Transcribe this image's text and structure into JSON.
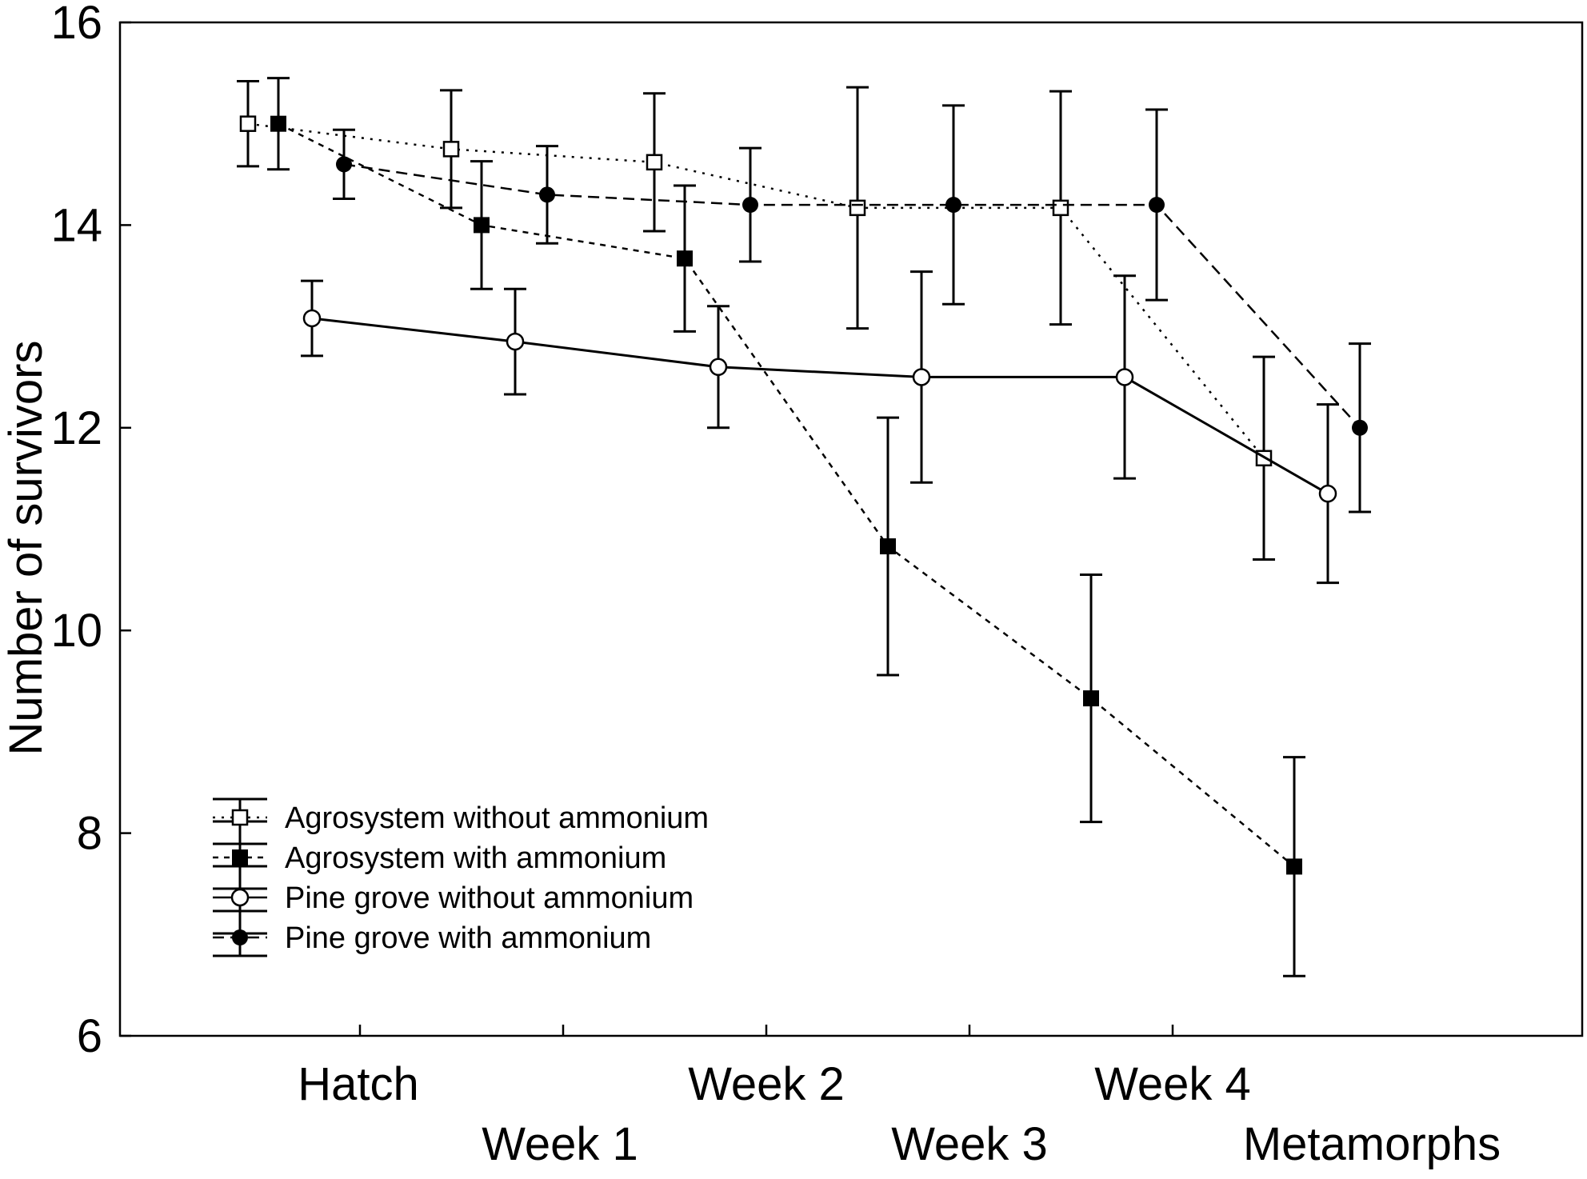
{
  "chart_data": {
    "type": "line",
    "title": "",
    "xlabel": "",
    "ylabel": "Number of survivors",
    "categories": [
      "Hatch",
      "Week 1",
      "Week 2",
      "Week 3",
      "Week 4",
      "Metamorphs"
    ],
    "ylim": [
      6,
      16
    ],
    "yticks": [
      6,
      8,
      10,
      12,
      14,
      16
    ],
    "grid": false,
    "legend_position": "bottom-left",
    "series": [
      {
        "name": "Agrosystem without ammonium",
        "marker": "open-square",
        "line_style": "dotted",
        "values": [
          15.0,
          14.75,
          14.62,
          14.17,
          14.17,
          11.7
        ],
        "error": [
          0.42,
          0.58,
          0.68,
          1.19,
          1.15,
          1.0
        ]
      },
      {
        "name": "Agrosystem with ammonium",
        "marker": "filled-square",
        "line_style": "dashed-short",
        "values": [
          15.0,
          14.0,
          13.67,
          10.83,
          9.33,
          7.67
        ],
        "error": [
          0.45,
          0.63,
          0.72,
          1.27,
          1.22,
          1.08
        ]
      },
      {
        "name": "Pine grove without ammonium",
        "marker": "open-circle",
        "line_style": "solid",
        "values": [
          13.08,
          12.85,
          12.6,
          12.5,
          12.5,
          11.35
        ],
        "error": [
          0.37,
          0.52,
          0.6,
          1.04,
          1.0,
          0.88
        ]
      },
      {
        "name": "Pine grove with ammonium",
        "marker": "filled-circle",
        "line_style": "dashed-long",
        "values": [
          14.6,
          14.3,
          14.2,
          14.2,
          14.2,
          12.0
        ],
        "error": [
          0.34,
          0.48,
          0.56,
          0.98,
          0.94,
          0.83
        ]
      }
    ]
  }
}
